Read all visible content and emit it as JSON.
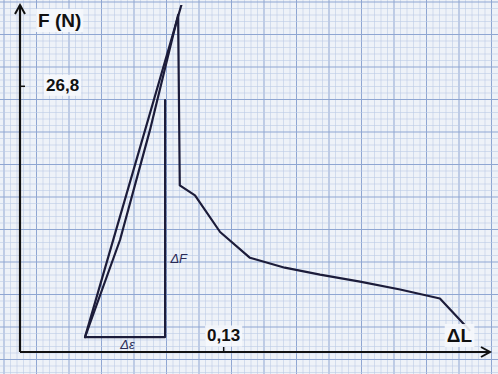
{
  "chart_data": {
    "type": "line",
    "x_label": "ΔL",
    "y_label": "F (N)",
    "xlim": [
      0,
      0.3
    ],
    "ylim": [
      0,
      35
    ],
    "xticks": [
      {
        "value": 0.13,
        "label": "0,13"
      }
    ],
    "yticks": [
      {
        "value": 26.8,
        "label": "26,8"
      }
    ],
    "grid": true,
    "tick_labels": true,
    "color": "#1c1c3a",
    "series": [
      {
        "type": "line",
        "color": "#1c1c3a",
        "line_style": "solid",
        "x": [
          0.0415,
          0.0638,
          0.083,
          0.097,
          0.1009,
          0.102,
          0.1117,
          0.1277,
          0.1468,
          0.169,
          0.1915,
          0.217,
          0.2426,
          0.268,
          0.287
        ],
        "values": [
          1.5,
          11.3,
          22.4,
          31.5,
          34.0,
          16.8,
          15.8,
          12.1,
          9.5,
          8.5,
          7.8,
          7.1,
          6.3,
          5.4,
          2.2
        ]
      },
      {
        "type": "line",
        "color": "#1c1c3a",
        "line_style": "solid",
        "x": [
          0.0415,
          0.103
        ],
        "values": [
          1.5,
          35
        ]
      },
      {
        "type": "line",
        "color": "#1c1c3a",
        "line_style": "solid",
        "x": [
          0.0415,
          0.0926,
          0.0926
        ],
        "values": [
          1.5,
          1.5,
          25.4
        ]
      }
    ],
    "annotations": [
      {
        "text": "ΔF",
        "x": 0.096,
        "y": 9
      },
      {
        "text": "Δε",
        "x": 0.064,
        "y": 0.3
      }
    ]
  }
}
